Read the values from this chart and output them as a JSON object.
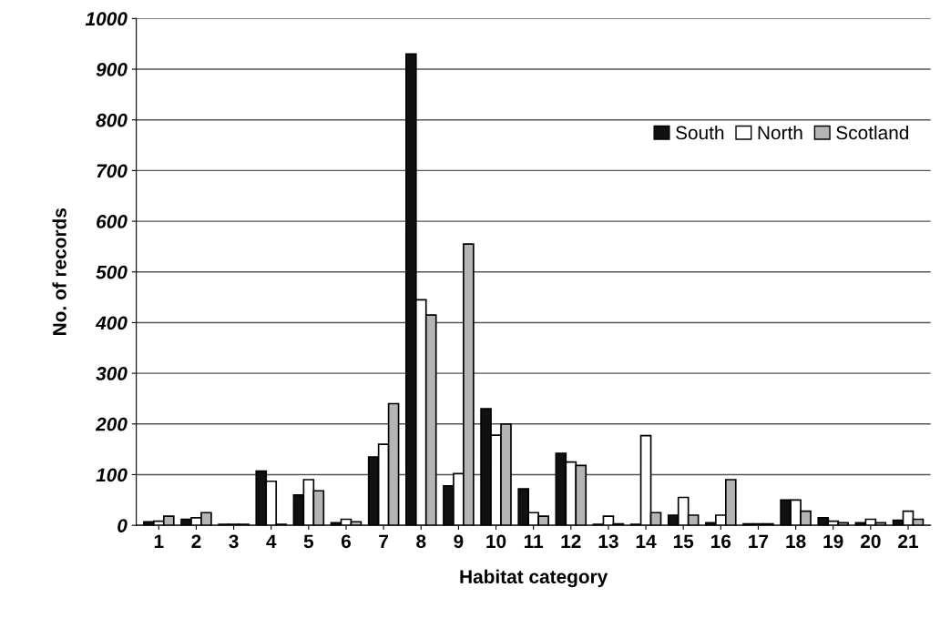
{
  "chart_data": {
    "type": "bar",
    "xlabel": "Habitat category",
    "ylabel": "No. of records",
    "categories": [
      "1",
      "2",
      "3",
      "4",
      "5",
      "6",
      "7",
      "8",
      "9",
      "10",
      "11",
      "12",
      "13",
      "14",
      "15",
      "16",
      "17",
      "18",
      "19",
      "20",
      "21"
    ],
    "series": [
      {
        "name": "South",
        "color": "#111111",
        "values": [
          7,
          12,
          2,
          107,
          60,
          5,
          135,
          930,
          78,
          230,
          72,
          142,
          2,
          2,
          20,
          5,
          3,
          50,
          15,
          5,
          10
        ]
      },
      {
        "name": "North",
        "color": "#ffffff",
        "values": [
          8,
          15,
          2,
          87,
          90,
          12,
          160,
          445,
          102,
          178,
          25,
          125,
          18,
          177,
          55,
          20,
          3,
          50,
          8,
          12,
          28
        ]
      },
      {
        "name": "Scotland",
        "color": "#b4b4b4",
        "values": [
          18,
          25,
          2,
          2,
          68,
          7,
          240,
          415,
          555,
          200,
          18,
          118,
          3,
          25,
          20,
          90,
          3,
          28,
          5,
          5,
          12
        ]
      }
    ],
    "ylim": [
      0,
      1000
    ],
    "yticks": [
      0,
      100,
      200,
      300,
      400,
      500,
      600,
      700,
      800,
      900,
      1000
    ],
    "grid": "y",
    "legend": "top right"
  }
}
